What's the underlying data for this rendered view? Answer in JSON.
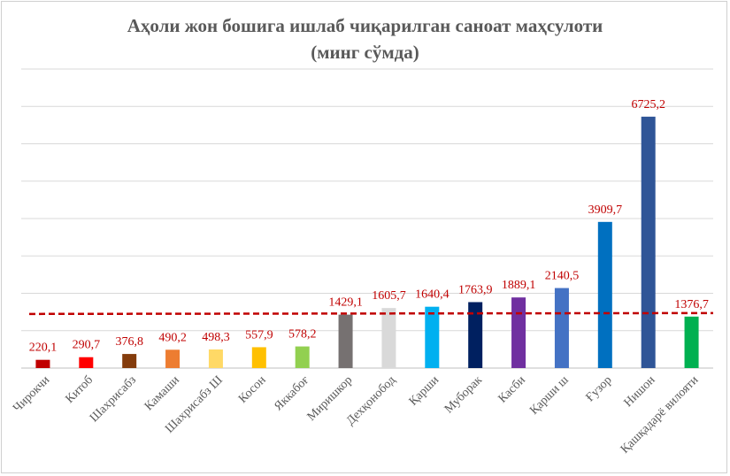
{
  "chart_data": {
    "type": "bar",
    "title_line1": "Аҳоли жон бошига ишлаб чиқарилган саноат маҳсулоти",
    "title_line2": "(минг сўмда)",
    "categories": [
      "Чирокчи",
      "Китоб",
      "Шахрисабз",
      "Камаши",
      "Шахрисабз Ш",
      "Косон",
      "Яккабоғ",
      "Миришкор",
      "Дехқонобод",
      "Қарши",
      "Муборак",
      "Касби",
      "Қарши ш",
      "Ғузор",
      "Нишон",
      "Қашқадарё вилояти"
    ],
    "values": [
      220.1,
      290.7,
      376.8,
      490.2,
      498.3,
      557.9,
      578.2,
      1429.1,
      1605.7,
      1640.4,
      1763.9,
      1889.1,
      2140.5,
      3909.7,
      6725.2,
      1376.7
    ],
    "data_labels": [
      "220,1",
      "290,7",
      "376,8",
      "490,2",
      "498,3",
      "557,9",
      "578,2",
      "1429,1",
      "1605,7",
      "1640,4",
      "1763,9",
      "1889,1",
      "2140,5",
      "3909,7",
      "6725,2",
      "1376,7"
    ],
    "colors": [
      "#c00000",
      "#ff0000",
      "#843c0c",
      "#ed7d31",
      "#ffd966",
      "#ffc000",
      "#92d050",
      "#767171",
      "#d9d9d9",
      "#00b0f0",
      "#002060",
      "#7030a0",
      "#4472c4",
      "#0070c0",
      "#2f5597",
      "#00b050"
    ],
    "ylim": [
      0,
      8000
    ],
    "grid": true,
    "reference_line": {
      "style": "dashed",
      "color": "#c00000",
      "from": 1376.7,
      "to": 1400
    },
    "label_color": "#c00000"
  }
}
